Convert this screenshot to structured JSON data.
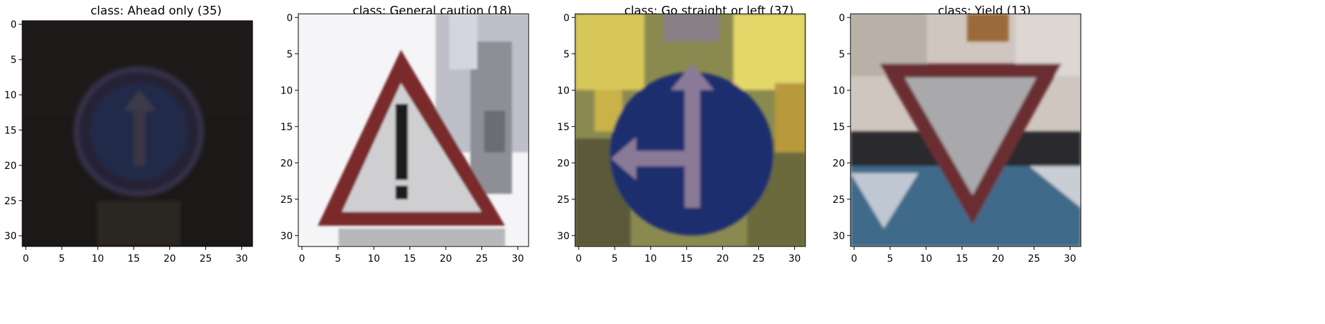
{
  "figure": {
    "panels": [
      {
        "title": "class: Ahead only (35)",
        "x_ticks": [
          "0",
          "5",
          "10",
          "15",
          "20",
          "25",
          "30"
        ],
        "y_ticks": [
          "0",
          "5",
          "10",
          "15",
          "20",
          "25",
          "30"
        ],
        "image": {
          "subject": "ahead-only-sign",
          "background": "#1f1a1a",
          "sign_color": "#2b3150",
          "arrow_color": "#3b3a48",
          "brightness": "dark"
        }
      },
      {
        "title": "class: General caution (18)",
        "x_ticks": [
          "0",
          "5",
          "10",
          "15",
          "20",
          "25",
          "30"
        ],
        "y_ticks": [
          "0",
          "5",
          "10",
          "15",
          "20",
          "25",
          "30"
        ],
        "image": {
          "subject": "general-caution-sign",
          "background": "#f4f4f6",
          "border_color": "#7a2b2b",
          "face_color": "#cfcfd2",
          "symbol_color": "#1c1c1c",
          "building_color": "#9a9aa2"
        }
      },
      {
        "title": "class: Go straight or left (37)",
        "x_ticks": [
          "0",
          "5",
          "10",
          "15",
          "20",
          "25",
          "30"
        ],
        "y_ticks": [
          "0",
          "5",
          "10",
          "15",
          "20",
          "25",
          "30"
        ],
        "image": {
          "subject": "go-straight-or-left-sign",
          "foliage_color": "#c7b54a",
          "sign_color": "#1f2f6e",
          "arrow_color": "#8a7a98"
        }
      },
      {
        "title": "class: Yield (13)",
        "x_ticks": [
          "0",
          "5",
          "10",
          "15",
          "20",
          "25",
          "30"
        ],
        "y_ticks": [
          "0",
          "5",
          "10",
          "15",
          "20",
          "25",
          "30"
        ],
        "image": {
          "subject": "yield-sign",
          "sky_color": "#cfc6bf",
          "border_color": "#6b2d33",
          "face_color": "#a9a9ac",
          "stripe_color": "#2a2a2e",
          "ground_color": "#3f6a8a"
        }
      }
    ]
  }
}
